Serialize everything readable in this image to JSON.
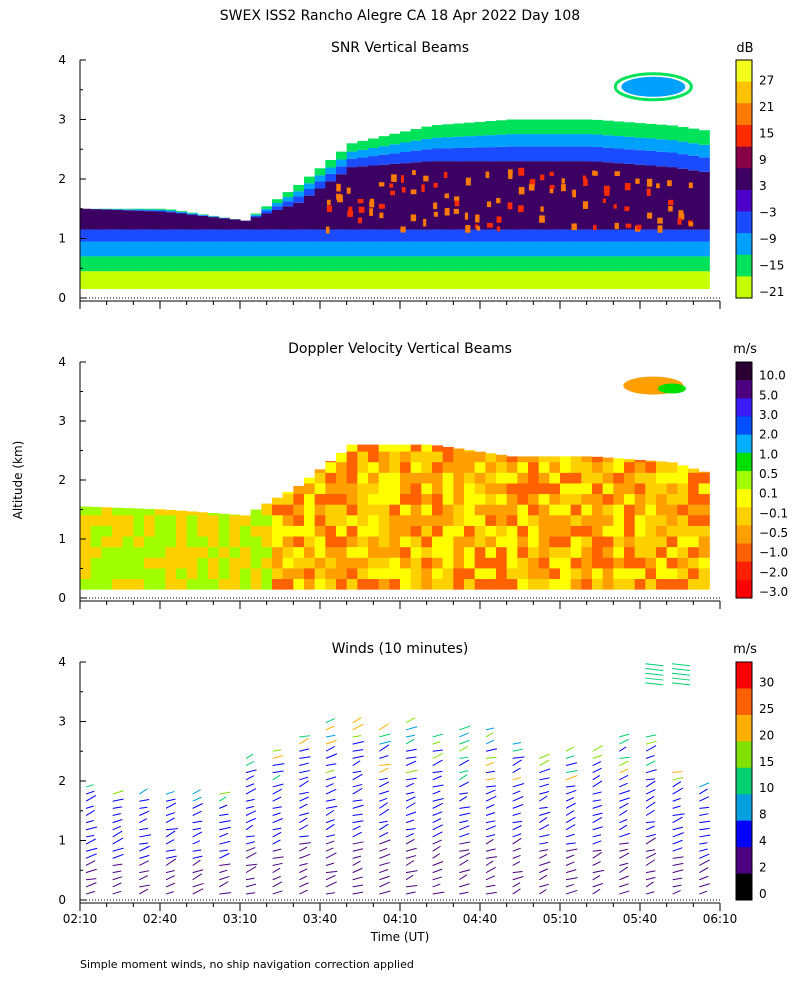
{
  "figure": {
    "title": "SWEX ISS2 Rancho Alegre CA  18 Apr 2022 Day 108",
    "footnote": "Simple moment winds, no ship navigation correction applied"
  },
  "chart_data": [
    {
      "type": "heatmap",
      "title": "SNR Vertical Beams",
      "xlabel": "",
      "ylabel": "",
      "ylim": [
        0,
        4
      ],
      "yticks": [
        "0",
        "1",
        "2",
        "3",
        "4"
      ],
      "colorbar": {
        "unit": "dB",
        "labels": [
          "27",
          "21",
          "15",
          "9",
          "3",
          "−3",
          "−9",
          "−15",
          "−21"
        ],
        "colors": [
          "#f3ff1c",
          "#ffc200",
          "#ff7a00",
          "#ff2a00",
          "#8a0046",
          "#3b0062",
          "#4b00c8",
          "#1a4bff",
          "#00a0ff",
          "#00e25a",
          "#c6ff00"
        ]
      },
      "profile": {
        "time_min": [
          0,
          30,
          60,
          80,
          100,
          130,
          160,
          190,
          220,
          235
        ],
        "top_km": [
          1.5,
          1.5,
          1.3,
          1.9,
          2.6,
          2.9,
          3.0,
          3.0,
          2.9,
          2.8
        ],
        "core_top_km": [
          1.5,
          1.45,
          1.3,
          1.6,
          2.2,
          2.3,
          2.3,
          2.3,
          2.2,
          2.1
        ]
      }
    },
    {
      "type": "heatmap",
      "title": "Doppler Velocity Vertical Beams",
      "ylim": [
        0,
        4
      ],
      "yticks": [
        "0",
        "1",
        "2",
        "3",
        "4"
      ],
      "colorbar": {
        "unit": "m/s",
        "labels": [
          "10.0",
          "5.0",
          "3.0",
          "2.0",
          "1.0",
          "0.5",
          "0.1",
          "−0.1",
          "−0.5",
          "−1.0",
          "−2.0",
          "−3.0"
        ],
        "colors": [
          "#2a0033",
          "#4d0080",
          "#3a1aff",
          "#0050ff",
          "#00b0ff",
          "#00e000",
          "#a0ff00",
          "#ffff00",
          "#ffd000",
          "#ffa000",
          "#ff6000",
          "#ff2000",
          "#ff0000"
        ]
      },
      "profile": {
        "time_min": [
          0,
          30,
          60,
          80,
          100,
          130,
          160,
          190,
          220,
          235
        ],
        "top_km": [
          1.55,
          1.5,
          1.4,
          1.9,
          2.6,
          2.6,
          2.4,
          2.4,
          2.3,
          2.1
        ]
      }
    },
    {
      "type": "barbs",
      "title": "Winds (10 minutes)",
      "ylabel": "Altitude (km)",
      "xlabel": "Time (UT)",
      "ylim": [
        0,
        4
      ],
      "yticks": [
        "0",
        "1",
        "2",
        "3",
        "4"
      ],
      "xticks": [
        "02:10",
        "02:40",
        "03:10",
        "03:40",
        "04:10",
        "04:40",
        "05:10",
        "05:40",
        "06:10"
      ],
      "xlim_min": [
        0,
        240
      ],
      "colorbar": {
        "unit": "m/s",
        "labels": [
          "30",
          "25",
          "20",
          "15",
          "10",
          "8",
          "4",
          "2",
          "0"
        ],
        "colors": [
          "#ff0000",
          "#ff6000",
          "#ffb000",
          "#80e000",
          "#00d070",
          "#00a0e0",
          "#0000ff",
          "#4b0082",
          "#000000"
        ]
      },
      "profile_times_min": [
        0,
        10,
        20,
        30,
        40,
        50,
        60,
        70,
        80,
        90,
        100,
        110,
        120,
        130,
        140,
        150,
        160,
        170,
        180,
        190,
        200,
        210,
        220,
        230
      ],
      "profile_tops_km": [
        2.0,
        1.9,
        1.9,
        1.9,
        1.8,
        1.8,
        2.5,
        2.6,
        2.8,
        3.0,
        3.0,
        2.9,
        3.0,
        2.8,
        2.9,
        2.9,
        2.7,
        2.5,
        2.6,
        2.6,
        2.8,
        2.8,
        2.2,
        2.0
      ]
    }
  ]
}
